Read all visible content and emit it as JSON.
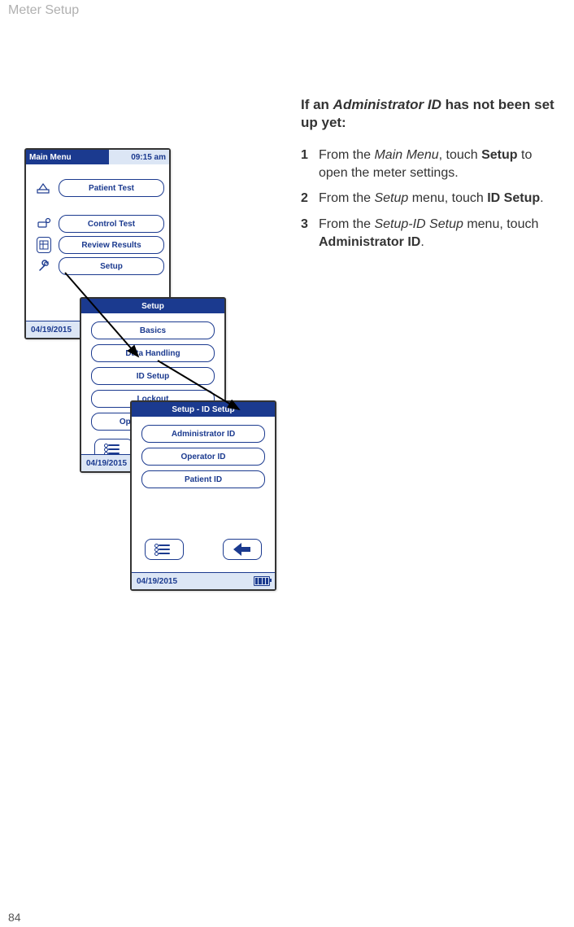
{
  "page": {
    "header": "Meter Setup",
    "number": "84"
  },
  "instructions": {
    "intro_prefix": "If an ",
    "intro_italic": "Administrator ID",
    "intro_suffix": " has not been set up yet:",
    "steps": [
      {
        "num": "1",
        "parts": [
          {
            "t": "From the ",
            "i": false,
            "b": false
          },
          {
            "t": "Main Menu",
            "i": true,
            "b": false
          },
          {
            "t": ", touch ",
            "i": false,
            "b": false
          },
          {
            "t": "Setup",
            "i": false,
            "b": true
          },
          {
            "t": " to open the meter settings.",
            "i": false,
            "b": false
          }
        ]
      },
      {
        "num": "2",
        "parts": [
          {
            "t": "From the ",
            "i": false,
            "b": false
          },
          {
            "t": "Setup",
            "i": true,
            "b": false
          },
          {
            "t": " menu, touch ",
            "i": false,
            "b": false
          },
          {
            "t": "ID Setup",
            "i": false,
            "b": true
          },
          {
            "t": ".",
            "i": false,
            "b": false
          }
        ]
      },
      {
        "num": "3",
        "parts": [
          {
            "t": "From the ",
            "i": false,
            "b": false
          },
          {
            "t": "Setup-ID Setup",
            "i": true,
            "b": false
          },
          {
            "t": " menu, touch ",
            "i": false,
            "b": false
          },
          {
            "t": "Administrator ID",
            "i": false,
            "b": true
          },
          {
            "t": ".",
            "i": false,
            "b": false
          }
        ]
      }
    ]
  },
  "colors": {
    "brand": "#1b3a8f",
    "light": "#dce6f5"
  },
  "screens": {
    "main": {
      "title": "Main Menu",
      "time": "09:15 am",
      "buttons": {
        "patient": "Patient Test",
        "control": "Control Test",
        "review": "Review Results",
        "setup": "Setup"
      },
      "date": "04/19/2015"
    },
    "setup": {
      "title": "Setup",
      "buttons": {
        "basics": "Basics",
        "data": "Data Handling",
        "id": "ID Setup",
        "lockout": "Lockout",
        "optional": "Optional Screens"
      },
      "date": "04/19/2015"
    },
    "idsetup": {
      "title": "Setup - ID Setup",
      "buttons": {
        "admin": "Administrator ID",
        "operator": "Operator ID",
        "patient": "Patient ID"
      },
      "date": "04/19/2015"
    }
  }
}
